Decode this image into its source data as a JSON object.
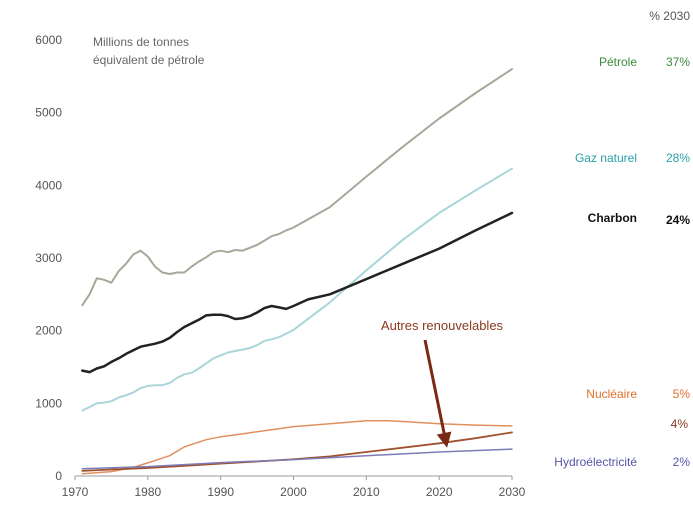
{
  "chart_data": {
    "type": "line",
    "title": "",
    "ylabel_lines": [
      "Millions de tonnes",
      "équivalent de pétrole"
    ],
    "share_header": "% 2030",
    "xlim": [
      1970,
      2030
    ],
    "ylim": [
      0,
      6000
    ],
    "x_ticks": [
      1970,
      1980,
      1990,
      2000,
      2010,
      2020,
      2030
    ],
    "y_ticks": [
      0,
      1000,
      2000,
      3000,
      4000,
      5000,
      6000
    ],
    "grid": false,
    "legend": "labels at right edge",
    "series": [
      {
        "name": "Pétrole",
        "share_2030": "37%",
        "color": "#a8a89a",
        "label_color": "#3c8a3c",
        "x": [
          1971,
          1972,
          1973,
          1974,
          1975,
          1976,
          1977,
          1978,
          1979,
          1980,
          1981,
          1982,
          1983,
          1984,
          1985,
          1986,
          1987,
          1988,
          1989,
          1990,
          1991,
          1992,
          1993,
          1994,
          1995,
          1996,
          1997,
          1998,
          1999,
          2000,
          2005,
          2010,
          2015,
          2020,
          2025,
          2030
        ],
        "values": [
          2350,
          2500,
          2720,
          2700,
          2660,
          2820,
          2920,
          3050,
          3100,
          3020,
          2880,
          2800,
          2780,
          2800,
          2800,
          2880,
          2950,
          3010,
          3080,
          3100,
          3080,
          3110,
          3100,
          3140,
          3180,
          3240,
          3300,
          3330,
          3380,
          3420,
          3700,
          4120,
          4530,
          4920,
          5270,
          5600
        ]
      },
      {
        "name": "Gaz naturel",
        "share_2030": "28%",
        "color": "#a9d6d9",
        "label_color": "#2aa0aa",
        "x": [
          1971,
          1972,
          1973,
          1974,
          1975,
          1976,
          1977,
          1978,
          1979,
          1980,
          1981,
          1982,
          1983,
          1984,
          1985,
          1986,
          1987,
          1988,
          1989,
          1990,
          1991,
          1992,
          1993,
          1994,
          1995,
          1996,
          1997,
          1998,
          1999,
          2000,
          2005,
          2010,
          2015,
          2020,
          2025,
          2030
        ],
        "values": [
          900,
          950,
          1000,
          1010,
          1030,
          1080,
          1110,
          1150,
          1210,
          1240,
          1250,
          1250,
          1280,
          1350,
          1400,
          1420,
          1480,
          1550,
          1620,
          1660,
          1700,
          1720,
          1740,
          1760,
          1800,
          1860,
          1880,
          1910,
          1960,
          2010,
          2390,
          2830,
          3250,
          3620,
          3930,
          4230
        ]
      },
      {
        "name": "Charbon",
        "share_2030": "24%",
        "color": "#222222",
        "label_color": "#111111",
        "x": [
          1971,
          1972,
          1973,
          1974,
          1975,
          1976,
          1977,
          1978,
          1979,
          1980,
          1981,
          1982,
          1983,
          1984,
          1985,
          1986,
          1987,
          1988,
          1989,
          1990,
          1991,
          1992,
          1993,
          1994,
          1995,
          1996,
          1997,
          1998,
          1999,
          2000,
          2002,
          2005,
          2010,
          2015,
          2020,
          2025,
          2030
        ],
        "values": [
          1450,
          1430,
          1480,
          1510,
          1570,
          1620,
          1680,
          1730,
          1780,
          1800,
          1820,
          1850,
          1900,
          1980,
          2050,
          2100,
          2150,
          2210,
          2220,
          2220,
          2200,
          2160,
          2170,
          2200,
          2250,
          2310,
          2340,
          2320,
          2300,
          2340,
          2430,
          2500,
          2710,
          2920,
          3130,
          3380,
          3620
        ]
      },
      {
        "name": "Nucléaire",
        "share_2030": "5%",
        "color": "#e09060",
        "label_color": "#e0702a",
        "x": [
          1971,
          1975,
          1978,
          1980,
          1983,
          1985,
          1988,
          1990,
          1993,
          1995,
          1998,
          2000,
          2005,
          2010,
          2013,
          2015,
          2020,
          2025,
          2030
        ],
        "values": [
          30,
          60,
          120,
          180,
          280,
          400,
          500,
          540,
          580,
          610,
          650,
          680,
          720,
          760,
          760,
          750,
          720,
          700,
          690
        ]
      },
      {
        "name": "",
        "share_2030": "4%",
        "color": "#a0522d",
        "label_color": "#8a3a1f",
        "x": [
          1971,
          1975,
          1980,
          1985,
          1990,
          1995,
          2000,
          2005,
          2010,
          2015,
          2020,
          2025,
          2030
        ],
        "values": [
          70,
          90,
          110,
          140,
          170,
          200,
          230,
          270,
          330,
          390,
          450,
          520,
          600
        ]
      },
      {
        "name": "Hydroélectricité",
        "share_2030": "2%",
        "color": "#7b7bb8",
        "label_color": "#5555aa",
        "x": [
          1971,
          1980,
          1990,
          2000,
          2010,
          2020,
          2030
        ],
        "values": [
          100,
          130,
          185,
          225,
          280,
          330,
          370
        ]
      }
    ],
    "annotations": [
      {
        "text": "Autres renouvelables",
        "arrow_to": {
          "x": 2021,
          "y": 430
        }
      }
    ]
  }
}
